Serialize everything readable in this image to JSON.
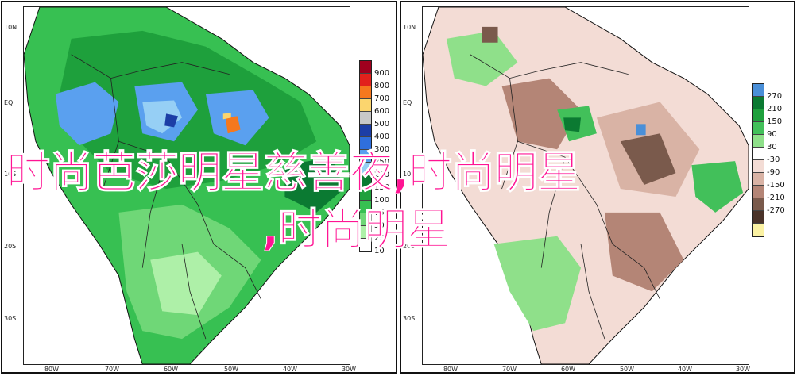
{
  "overlay": {
    "line1": "时尚芭莎明星慈善夜,时尚明星",
    "line2": ",时尚明星"
  },
  "axes": {
    "lat_labels": [
      "10N",
      "EQ",
      "10S",
      "20S",
      "30S"
    ],
    "lon_labels": [
      "80W",
      "70W",
      "60W",
      "50W",
      "40W",
      "30W"
    ]
  },
  "panels": [
    {
      "id": "precipitation",
      "legend": [
        {
          "label": "900",
          "color": "#a0001e"
        },
        {
          "label": "800",
          "color": "#e2211c"
        },
        {
          "label": "700",
          "color": "#f5781e"
        },
        {
          "label": "600",
          "color": "#fbd56e"
        },
        {
          "label": "500",
          "color": "#c8c8c8"
        },
        {
          "label": "400",
          "color": "#1c3ea6"
        },
        {
          "label": "300",
          "color": "#2f6fdc"
        },
        {
          "label": "250",
          "color": "#5aa0ef"
        },
        {
          "label": "200",
          "color": "#96cff5"
        },
        {
          "label": "150",
          "color": "#0b7a32"
        },
        {
          "label": "100",
          "color": "#1ea03c"
        },
        {
          "label": "75",
          "color": "#37c052"
        },
        {
          "label": "50",
          "color": "#6fd777"
        },
        {
          "label": "25",
          "color": "#aef0a8"
        },
        {
          "label": "10",
          "color": "#ffffff"
        }
      ]
    },
    {
      "id": "anomaly",
      "legend": [
        {
          "label": "270",
          "color": "#4a8fd8"
        },
        {
          "label": "210",
          "color": "#0b7a32"
        },
        {
          "label": "150",
          "color": "#1ea03c"
        },
        {
          "label": "90",
          "color": "#42c05a"
        },
        {
          "label": "30",
          "color": "#8fe08a"
        },
        {
          "label": "-30",
          "color": "#ffffff"
        },
        {
          "label": "-90",
          "color": "#f3dcd5"
        },
        {
          "label": "-150",
          "color": "#d9b3a5"
        },
        {
          "label": "-210",
          "color": "#b48576"
        },
        {
          "label": "-270",
          "color": "#7a5a4c"
        },
        {
          "label": "",
          "color": "#4a3329"
        },
        {
          "label": "",
          "color": "#fbf2a3"
        }
      ]
    }
  ]
}
